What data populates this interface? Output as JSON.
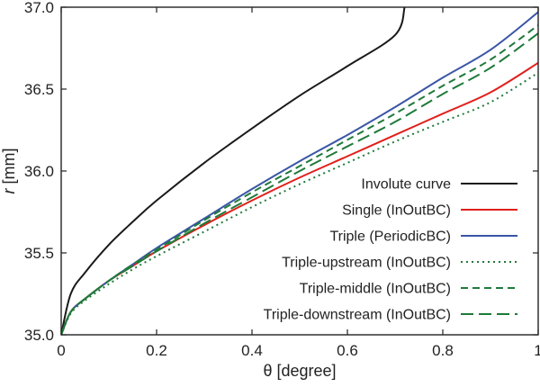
{
  "chart_data": {
    "type": "line",
    "xlabel": "θ [degree]",
    "ylabel_var": "r",
    "ylabel_unit": " [mm]",
    "xlim": [
      0,
      1
    ],
    "ylim": [
      35.0,
      37.0
    ],
    "xticks": [
      "0",
      "0.2",
      "0.4",
      "0.6",
      "0.8",
      "1"
    ],
    "yticks": [
      "35.0",
      "35.5",
      "36.0",
      "36.5",
      "37.0"
    ],
    "legend_position": "bottom-right",
    "grid": false,
    "series": [
      {
        "name": "Involute curve",
        "color": "#1a1a1a",
        "style": "solid",
        "x": [
          0,
          0.02,
          0.05,
          0.1,
          0.15,
          0.2,
          0.3,
          0.4,
          0.5,
          0.6,
          0.7,
          0.72
        ],
        "y": [
          35.0,
          35.25,
          35.38,
          35.55,
          35.69,
          35.82,
          36.05,
          36.26,
          36.46,
          36.64,
          36.83,
          37.0
        ]
      },
      {
        "name": "Single (InOutBC)",
        "color": "#e0201b",
        "style": "solid",
        "x": [
          0,
          0.02,
          0.05,
          0.1,
          0.15,
          0.2,
          0.3,
          0.4,
          0.5,
          0.6,
          0.7,
          0.8,
          0.9,
          1.0
        ],
        "y": [
          35.0,
          35.14,
          35.22,
          35.33,
          35.42,
          35.51,
          35.67,
          35.82,
          35.96,
          36.09,
          36.22,
          36.35,
          36.48,
          36.66
        ]
      },
      {
        "name": "Triple (PeriodicBC)",
        "color": "#3a56a6",
        "style": "solid",
        "x": [
          0,
          0.02,
          0.05,
          0.1,
          0.15,
          0.2,
          0.3,
          0.4,
          0.5,
          0.6,
          0.7,
          0.8,
          0.9,
          1.0
        ],
        "y": [
          35.0,
          35.14,
          35.22,
          35.33,
          35.43,
          35.53,
          35.71,
          35.89,
          36.06,
          36.22,
          36.39,
          36.57,
          36.74,
          36.97
        ]
      },
      {
        "name": "Triple-upstream (InOutBC)",
        "color": "#1f7a3a",
        "style": "dotted",
        "x": [
          0,
          0.02,
          0.05,
          0.1,
          0.15,
          0.2,
          0.3,
          0.4,
          0.5,
          0.6,
          0.7,
          0.8,
          0.9,
          1.0
        ],
        "y": [
          35.0,
          35.13,
          35.21,
          35.31,
          35.4,
          35.48,
          35.63,
          35.78,
          35.92,
          36.05,
          36.18,
          36.3,
          36.42,
          36.6
        ]
      },
      {
        "name": "Triple-middle (InOutBC)",
        "color": "#1f7a3a",
        "style": "dashed",
        "x": [
          0,
          0.02,
          0.05,
          0.1,
          0.15,
          0.2,
          0.3,
          0.4,
          0.5,
          0.6,
          0.7,
          0.8,
          0.9,
          1.0
        ],
        "y": [
          35.0,
          35.14,
          35.22,
          35.33,
          35.43,
          35.52,
          35.7,
          35.87,
          36.03,
          36.19,
          36.35,
          36.52,
          36.68,
          36.89
        ]
      },
      {
        "name": "Triple-downstream (InOutBC)",
        "color": "#1f7a3a",
        "style": "longdash",
        "x": [
          0,
          0.02,
          0.05,
          0.1,
          0.15,
          0.2,
          0.3,
          0.4,
          0.5,
          0.6,
          0.7,
          0.8,
          0.9,
          1.0
        ],
        "y": [
          35.0,
          35.14,
          35.22,
          35.33,
          35.42,
          35.51,
          35.68,
          35.84,
          36.0,
          36.15,
          36.3,
          36.47,
          36.63,
          36.84
        ]
      }
    ]
  }
}
